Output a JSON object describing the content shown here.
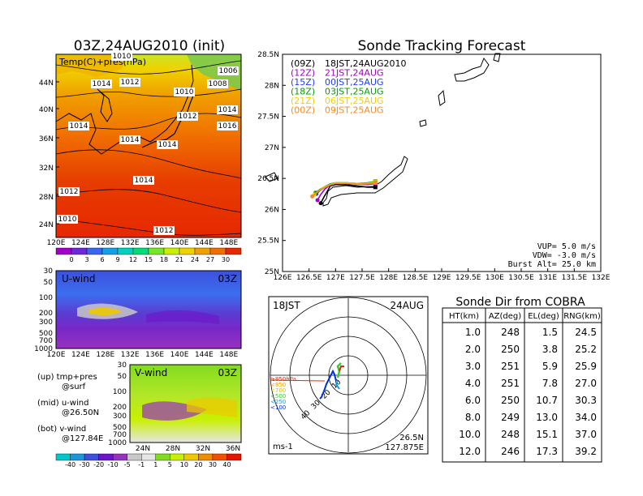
{
  "main_title": "03Z,24AUG2010 (init)",
  "tracking_title": "Sonde Tracking Forecast",
  "map_panel": {
    "label": "Temp(C)+pres(hPa)",
    "lat_labels": [
      "44N",
      "40N",
      "36N",
      "32N",
      "28N",
      "24N"
    ],
    "lon_labels": [
      "120E",
      "124E",
      "128E",
      "132E",
      "136E",
      "140E",
      "144E",
      "148E"
    ],
    "isobars": [
      "1010",
      "1014",
      "1012",
      "1010",
      "1008",
      "1006",
      "1014",
      "1012",
      "1014",
      "1016",
      "1014",
      "1014",
      "1014",
      "1012",
      "1010",
      "1012"
    ],
    "colorbar_labels": [
      "0",
      "3",
      "6",
      "9",
      "12",
      "15",
      "18",
      "21",
      "24",
      "27",
      "30"
    ],
    "colorbar_colors": [
      "#a000c8",
      "#6e28dc",
      "#3c64f0",
      "#14a0e6",
      "#00d2be",
      "#00dc78",
      "#78e628",
      "#c8f000",
      "#f0d200",
      "#f0a000",
      "#f06e00",
      "#e62800"
    ]
  },
  "u_panel": {
    "label": "U-wind",
    "time": "03Z",
    "y_labels": [
      "30",
      "50",
      "100",
      "200",
      "300",
      "500",
      "700",
      "1000"
    ],
    "x_labels": [
      "120E",
      "124E",
      "128E",
      "132E",
      "136E",
      "140E",
      "144E",
      "148E"
    ]
  },
  "v_panel": {
    "label": "V-wind",
    "time": "03Z",
    "y_labels": [
      "30",
      "50",
      "100",
      "200",
      "300",
      "500",
      "700",
      "1000"
    ],
    "x_labels": [
      "24N",
      "28N",
      "32N",
      "36N"
    ],
    "colorbar_labels": [
      "-40",
      "-30",
      "-20",
      "-10",
      "-5",
      "-1",
      "1",
      "5",
      "10",
      "20",
      "30",
      "40"
    ],
    "colorbar_colors": [
      "#00c8c8",
      "#1e96dc",
      "#3c50dc",
      "#6e14c8",
      "#9632be",
      "#c8c8c8",
      "#e6e6e6",
      "#82dc1e",
      "#c8f000",
      "#f0c800",
      "#f08c00",
      "#f05000",
      "#e61400"
    ]
  },
  "legend_text": [
    "(up) tmp+pres",
    "@surf",
    "(mid) u-wind",
    "@26.50N",
    "(bot) v-wind",
    "@127.84E"
  ],
  "track_map": {
    "legend": [
      {
        "code": "(09Z)",
        "time": "18JST,24AUG2010",
        "color": "#000000"
      },
      {
        "code": "(12Z)",
        "time": "21JST,24AUG",
        "color": "#a000c0"
      },
      {
        "code": "(15Z)",
        "time": "00JST,25AUG",
        "color": "#1e3cff"
      },
      {
        "code": "(18Z)",
        "time": "03JST,25AUG",
        "color": "#00a000"
      },
      {
        "code": "(21Z)",
        "time": "06JST,25AUG",
        "color": "#f0d200"
      },
      {
        "code": "(00Z)",
        "time": "09JST,25AUG",
        "color": "#f08c28"
      }
    ],
    "lat_labels": [
      "28.5N",
      "28N",
      "27.5N",
      "27N",
      "26.5N",
      "26N",
      "25.5N",
      "25N"
    ],
    "lon_labels": [
      "126E",
      "126.5E",
      "127E",
      "127.5E",
      "128E",
      "128.5E",
      "129E",
      "129.5E",
      "130E",
      "130.5E",
      "131E",
      "131.5E",
      "132E"
    ],
    "vup": "VUP=  5.0  m/s",
    "vdw": "VDW= -3.0  m/s",
    "burst": "Burst Alt=  25.0  km"
  },
  "polar": {
    "time_label": "18JST",
    "date_label": "24AUG",
    "range_labels": [
      "10",
      "20",
      "30",
      "40"
    ],
    "legend": [
      {
        "label": "≥850hPa",
        "color": "#e62800"
      },
      {
        "label": "<850",
        "color": "#f0a000"
      },
      {
        "label": "<700",
        "color": "#c8c800"
      },
      {
        "label": "<500",
        "color": "#3cc83c"
      },
      {
        "label": "<250",
        "color": "#00a0f0"
      },
      {
        "label": "<100",
        "color": "#0032dc"
      }
    ],
    "unit": "ms-1",
    "lat": "26.5N",
    "lon": "127.875E"
  },
  "cobra_table": {
    "title": "Sonde Dir from COBRA",
    "headers": [
      "HT(km)",
      "AZ(deg)",
      "EL(deg)",
      "RNG(km)"
    ],
    "rows": [
      [
        "1.0",
        "248",
        "1.5",
        "24.5"
      ],
      [
        "2.0",
        "250",
        "3.8",
        "25.2"
      ],
      [
        "3.0",
        "251",
        "5.9",
        "25.9"
      ],
      [
        "4.0",
        "251",
        "7.8",
        "27.0"
      ],
      [
        "6.0",
        "250",
        "10.7",
        "30.3"
      ],
      [
        "8.0",
        "249",
        "13.0",
        "34.0"
      ],
      [
        "10.0",
        "248",
        "15.1",
        "37.0"
      ],
      [
        "12.0",
        "246",
        "17.3",
        "39.2"
      ]
    ]
  },
  "chart_data": [
    {
      "type": "heatmap",
      "title": "03Z,24AUG2010 (init)",
      "subtitle": "Temp(C)+pres(hPa)",
      "x_range": [
        120,
        150
      ],
      "y_range": [
        22,
        48
      ],
      "colorbar": [
        0,
        3,
        6,
        9,
        12,
        15,
        18,
        21,
        24,
        27,
        30
      ]
    },
    {
      "type": "heatmap",
      "title": "U-wind",
      "y_range": [
        1000,
        30
      ],
      "y_log": true,
      "x_range": [
        120,
        150
      ]
    },
    {
      "type": "heatmap",
      "title": "V-wind",
      "y_range": [
        1000,
        30
      ],
      "y_log": true,
      "x_range": [
        22,
        38
      ],
      "colorbar": [
        -40,
        -30,
        -20,
        -10,
        -5,
        -1,
        1,
        5,
        10,
        20,
        30,
        40
      ]
    },
    {
      "type": "line",
      "title": "Sonde Tracking Forecast",
      "x_range": [
        126,
        132
      ],
      "y_range": [
        25,
        28.5
      ],
      "series": [
        {
          "name": "(09Z) 18JST,24AUG2010",
          "color": "#000000",
          "x": [
            126.72,
            126.78,
            126.85,
            126.9,
            127.0,
            127.2,
            127.4,
            127.6,
            127.75
          ],
          "y": [
            26.1,
            26.2,
            26.3,
            26.38,
            26.4,
            26.4,
            26.38,
            26.36,
            26.36
          ]
        },
        {
          "name": "(12Z) 21JST,24AUG",
          "color": "#a000c0",
          "x": [
            126.66,
            126.72,
            126.8,
            126.9,
            127.0,
            127.2,
            127.4,
            127.6,
            127.75
          ],
          "y": [
            26.15,
            26.24,
            26.33,
            26.4,
            26.42,
            26.42,
            26.41,
            26.4,
            26.42
          ]
        },
        {
          "name": "(15Z) 00JST,25AUG",
          "color": "#1e3cff",
          "x": [
            126.64,
            126.7,
            126.8,
            126.9,
            127.0,
            127.2,
            127.4,
            127.6,
            127.75
          ],
          "y": [
            26.25,
            26.3,
            26.36,
            26.41,
            26.43,
            26.43,
            26.42,
            26.42,
            26.45
          ]
        },
        {
          "name": "(18Z) 03JST,25AUG",
          "color": "#00a000",
          "x": [
            126.62,
            126.7,
            126.8,
            126.9,
            127.0,
            127.2,
            127.4,
            127.6,
            127.75
          ],
          "y": [
            26.27,
            26.32,
            26.37,
            26.41,
            26.43,
            26.43,
            26.42,
            26.43,
            26.45
          ]
        },
        {
          "name": "(21Z) 06JST,25AUG",
          "color": "#f0d200",
          "x": [
            126.6,
            126.68,
            126.78,
            126.9,
            127.0,
            127.2,
            127.4,
            127.6,
            127.75
          ],
          "y": [
            26.24,
            26.3,
            26.36,
            26.4,
            26.43,
            26.43,
            26.42,
            26.42,
            26.44
          ]
        },
        {
          "name": "(00Z) 09JST,25AUG",
          "color": "#f08c28",
          "x": [
            126.56,
            126.65,
            126.76,
            126.88,
            127.0,
            127.2,
            127.4,
            127.6,
            127.75
          ],
          "y": [
            26.21,
            26.28,
            26.34,
            26.39,
            26.42,
            26.42,
            26.41,
            26.41,
            26.43
          ]
        }
      ]
    },
    {
      "type": "table",
      "title": "Sonde Dir from COBRA",
      "columns": [
        "HT(km)",
        "AZ(deg)",
        "EL(deg)",
        "RNG(km)"
      ],
      "rows": [
        [
          1.0,
          248,
          1.5,
          24.5
        ],
        [
          2.0,
          250,
          3.8,
          25.2
        ],
        [
          3.0,
          251,
          5.9,
          25.9
        ],
        [
          4.0,
          251,
          7.8,
          27.0
        ],
        [
          6.0,
          250,
          10.7,
          30.3
        ],
        [
          8.0,
          249,
          13.0,
          34.0
        ],
        [
          10.0,
          248,
          15.1,
          37.0
        ],
        [
          12.0,
          246,
          17.3,
          39.2
        ]
      ]
    }
  ]
}
